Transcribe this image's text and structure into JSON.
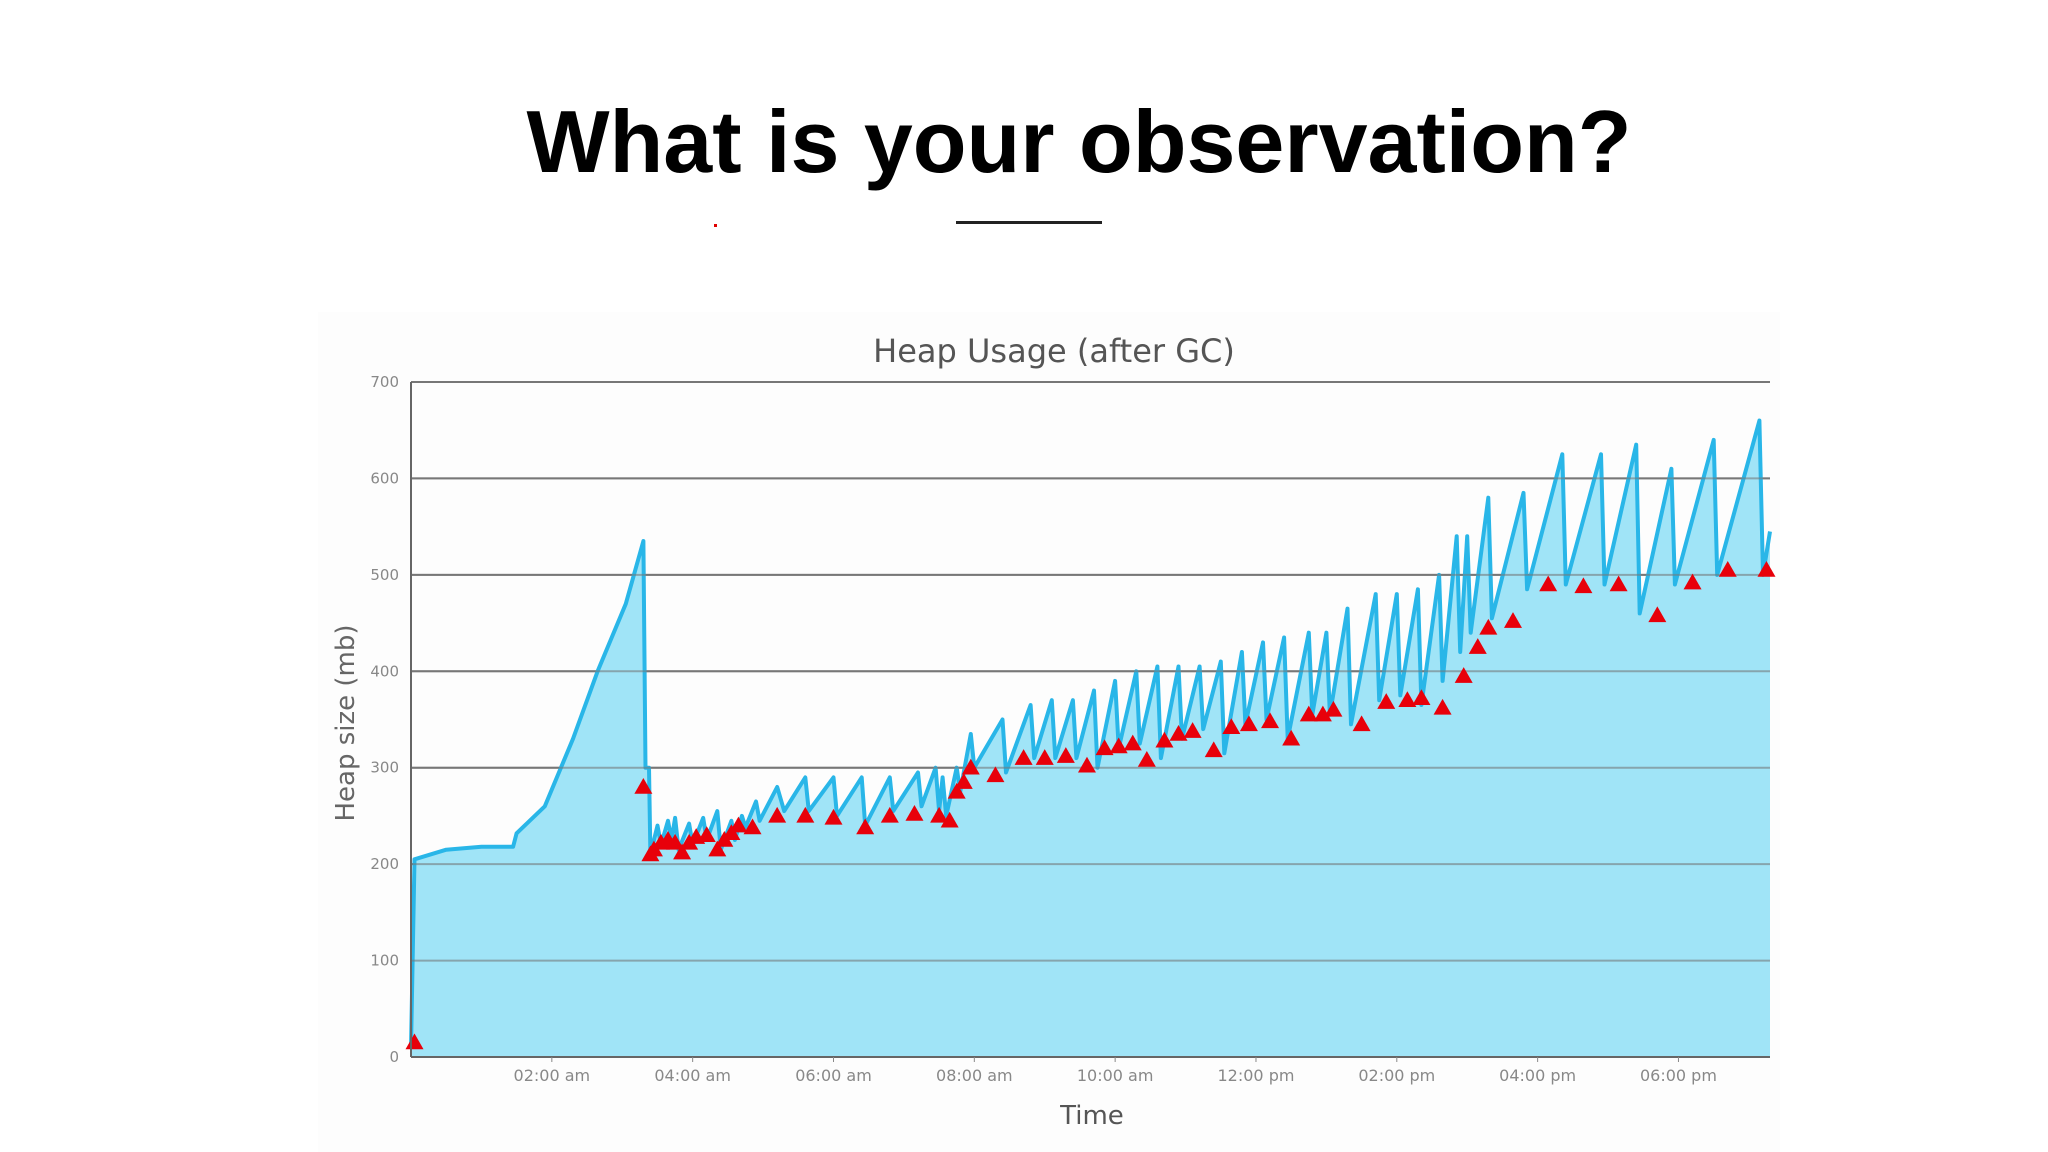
{
  "slide": {
    "title": "What is your observation?"
  },
  "colors": {
    "line": "#29b6e8",
    "fill": "#9be3f7",
    "marker": "#e8000a",
    "grid": "#777777",
    "axis_text": "#888888",
    "title_text": "#555555"
  },
  "chart_data": {
    "type": "area",
    "title": "Heap Usage (after GC)",
    "xlabel": "Time",
    "ylabel": "Heap size (mb)",
    "ylim": [
      0,
      700
    ],
    "yticks": [
      0,
      100,
      200,
      300,
      400,
      500,
      600,
      700
    ],
    "xlim": [
      0,
      19.3
    ],
    "x_unit": "hours since 00:00 am",
    "xticks": [
      {
        "x": 2,
        "label": "02:00 am"
      },
      {
        "x": 4,
        "label": "04:00 am"
      },
      {
        "x": 6,
        "label": "06:00 am"
      },
      {
        "x": 8,
        "label": "08:00 am"
      },
      {
        "x": 10,
        "label": "10:00 am"
      },
      {
        "x": 12,
        "label": "12:00 pm"
      },
      {
        "x": 14,
        "label": "02:00 pm"
      },
      {
        "x": 16,
        "label": "04:00 pm"
      },
      {
        "x": 18,
        "label": "06:00 pm"
      }
    ],
    "grid": true,
    "legend": "none",
    "series": [
      {
        "kind": "area-line",
        "points": [
          [
            0.0,
            10
          ],
          [
            0.05,
            205
          ],
          [
            0.5,
            215
          ],
          [
            1.0,
            218
          ],
          [
            1.45,
            218
          ],
          [
            1.5,
            232
          ],
          [
            1.9,
            260
          ],
          [
            2.3,
            330
          ],
          [
            2.65,
            400
          ],
          [
            3.05,
            470
          ],
          [
            3.3,
            535
          ],
          [
            3.33,
            300
          ],
          [
            3.38,
            300
          ],
          [
            3.4,
            210
          ],
          [
            3.5,
            240
          ],
          [
            3.55,
            220
          ],
          [
            3.65,
            245
          ],
          [
            3.7,
            225
          ],
          [
            3.75,
            248
          ],
          [
            3.8,
            215
          ],
          [
            3.95,
            242
          ],
          [
            4.0,
            220
          ],
          [
            4.15,
            248
          ],
          [
            4.2,
            225
          ],
          [
            4.35,
            255
          ],
          [
            4.4,
            215
          ],
          [
            4.55,
            245
          ],
          [
            4.6,
            225
          ],
          [
            4.7,
            250
          ],
          [
            4.75,
            238
          ],
          [
            4.9,
            265
          ],
          [
            4.95,
            245
          ],
          [
            5.2,
            280
          ],
          [
            5.3,
            255
          ],
          [
            5.6,
            290
          ],
          [
            5.65,
            255
          ],
          [
            6.0,
            290
          ],
          [
            6.05,
            250
          ],
          [
            6.4,
            290
          ],
          [
            6.45,
            240
          ],
          [
            6.8,
            290
          ],
          [
            6.85,
            255
          ],
          [
            7.2,
            295
          ],
          [
            7.25,
            260
          ],
          [
            7.45,
            300
          ],
          [
            7.5,
            255
          ],
          [
            7.55,
            290
          ],
          [
            7.6,
            250
          ],
          [
            7.75,
            300
          ],
          [
            7.8,
            275
          ],
          [
            7.95,
            335
          ],
          [
            8.0,
            300
          ],
          [
            8.4,
            350
          ],
          [
            8.45,
            295
          ],
          [
            8.8,
            365
          ],
          [
            8.85,
            310
          ],
          [
            9.1,
            370
          ],
          [
            9.15,
            310
          ],
          [
            9.4,
            370
          ],
          [
            9.45,
            310
          ],
          [
            9.7,
            380
          ],
          [
            9.75,
            300
          ],
          [
            10.0,
            390
          ],
          [
            10.05,
            320
          ],
          [
            10.3,
            400
          ],
          [
            10.35,
            325
          ],
          [
            10.6,
            405
          ],
          [
            10.65,
            310
          ],
          [
            10.9,
            405
          ],
          [
            10.95,
            330
          ],
          [
            11.2,
            405
          ],
          [
            11.25,
            340
          ],
          [
            11.5,
            410
          ],
          [
            11.55,
            315
          ],
          [
            11.8,
            420
          ],
          [
            11.85,
            345
          ],
          [
            12.1,
            430
          ],
          [
            12.15,
            350
          ],
          [
            12.4,
            435
          ],
          [
            12.45,
            330
          ],
          [
            12.75,
            440
          ],
          [
            12.8,
            355
          ],
          [
            13.0,
            440
          ],
          [
            13.05,
            355
          ],
          [
            13.3,
            465
          ],
          [
            13.35,
            345
          ],
          [
            13.7,
            480
          ],
          [
            13.75,
            370
          ],
          [
            14.0,
            480
          ],
          [
            14.05,
            375
          ],
          [
            14.3,
            485
          ],
          [
            14.35,
            365
          ],
          [
            14.6,
            500
          ],
          [
            14.65,
            390
          ],
          [
            14.85,
            540
          ],
          [
            14.9,
            420
          ],
          [
            15.0,
            540
          ],
          [
            15.05,
            440
          ],
          [
            15.3,
            580
          ],
          [
            15.35,
            455
          ],
          [
            15.8,
            585
          ],
          [
            15.85,
            485
          ],
          [
            16.35,
            625
          ],
          [
            16.4,
            490
          ],
          [
            16.9,
            625
          ],
          [
            16.95,
            490
          ],
          [
            17.4,
            635
          ],
          [
            17.45,
            460
          ],
          [
            17.9,
            610
          ],
          [
            17.95,
            490
          ],
          [
            18.5,
            640
          ],
          [
            18.55,
            500
          ],
          [
            19.15,
            660
          ],
          [
            19.2,
            500
          ],
          [
            19.3,
            545
          ]
        ]
      },
      {
        "kind": "markers",
        "name": "",
        "points": [
          [
            0.05,
            15
          ],
          [
            3.3,
            280
          ],
          [
            3.4,
            210
          ],
          [
            3.45,
            215
          ],
          [
            3.55,
            222
          ],
          [
            3.65,
            225
          ],
          [
            3.75,
            222
          ],
          [
            3.85,
            212
          ],
          [
            3.95,
            222
          ],
          [
            4.05,
            228
          ],
          [
            4.2,
            230
          ],
          [
            4.35,
            215
          ],
          [
            4.45,
            225
          ],
          [
            4.55,
            232
          ],
          [
            4.65,
            240
          ],
          [
            4.85,
            238
          ],
          [
            5.2,
            250
          ],
          [
            5.6,
            250
          ],
          [
            6.0,
            248
          ],
          [
            6.45,
            238
          ],
          [
            6.8,
            250
          ],
          [
            7.15,
            252
          ],
          [
            7.5,
            250
          ],
          [
            7.65,
            245
          ],
          [
            7.75,
            275
          ],
          [
            7.85,
            285
          ],
          [
            7.95,
            300
          ],
          [
            8.3,
            292
          ],
          [
            8.7,
            310
          ],
          [
            9.0,
            310
          ],
          [
            9.3,
            312
          ],
          [
            9.6,
            302
          ],
          [
            9.85,
            320
          ],
          [
            10.05,
            322
          ],
          [
            10.25,
            325
          ],
          [
            10.45,
            308
          ],
          [
            10.7,
            328
          ],
          [
            10.9,
            335
          ],
          [
            11.1,
            338
          ],
          [
            11.4,
            318
          ],
          [
            11.65,
            342
          ],
          [
            11.9,
            345
          ],
          [
            12.2,
            348
          ],
          [
            12.5,
            330
          ],
          [
            12.75,
            355
          ],
          [
            12.95,
            355
          ],
          [
            13.1,
            360
          ],
          [
            13.5,
            345
          ],
          [
            13.85,
            368
          ],
          [
            14.15,
            370
          ],
          [
            14.35,
            372
          ],
          [
            14.65,
            362
          ],
          [
            14.95,
            395
          ],
          [
            15.15,
            425
          ],
          [
            15.3,
            445
          ],
          [
            15.65,
            452
          ],
          [
            16.15,
            490
          ],
          [
            16.65,
            488
          ],
          [
            17.15,
            490
          ],
          [
            17.7,
            458
          ],
          [
            18.2,
            492
          ],
          [
            18.7,
            505
          ],
          [
            19.25,
            505
          ]
        ]
      }
    ]
  }
}
